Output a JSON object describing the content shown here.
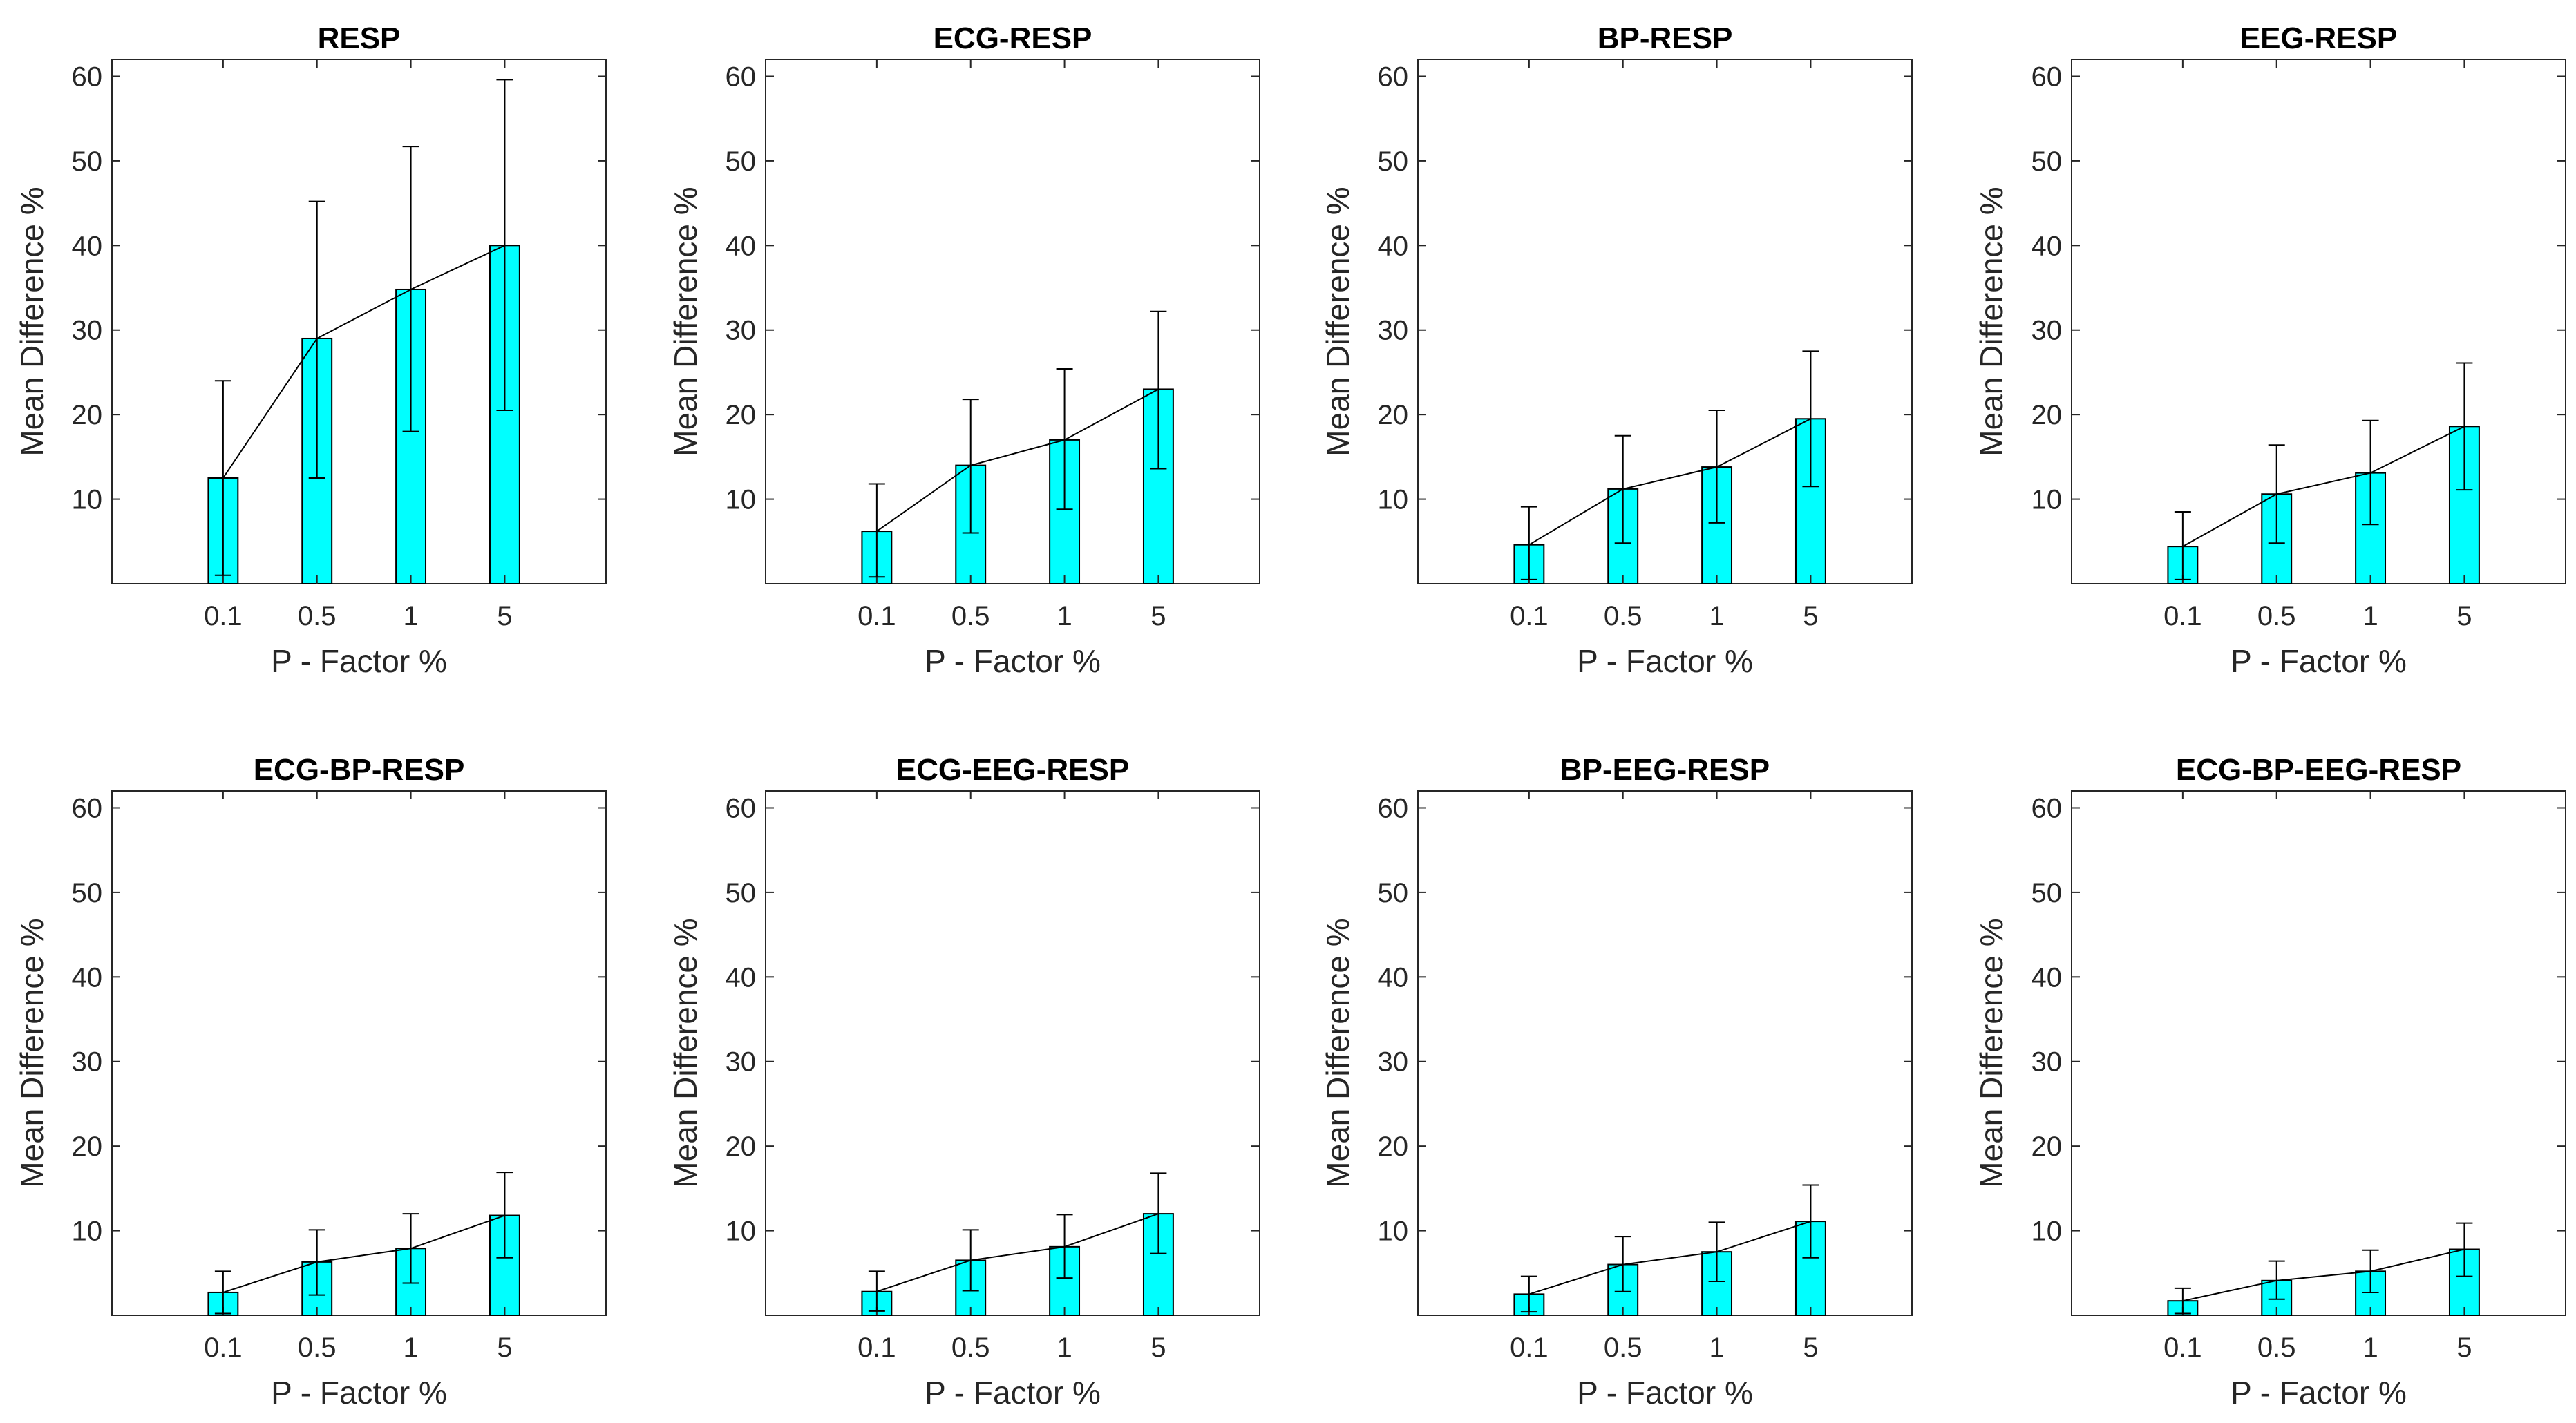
{
  "chart_data": [
    {
      "type": "bar",
      "title": "RESP",
      "xlabel": "P - Factor %",
      "ylabel": "Mean Difference %",
      "categories": [
        "0.1",
        "0.5",
        "1",
        "5"
      ],
      "values": [
        12.5,
        29,
        34.8,
        40
      ],
      "error_low": [
        1,
        12.5,
        18,
        20.5
      ],
      "error_high": [
        24,
        45.2,
        51.7,
        59.6
      ],
      "yticks": [
        10,
        20,
        30,
        40,
        50,
        60
      ],
      "ylim": [
        0,
        62
      ],
      "bar_color": "#00ffff"
    },
    {
      "type": "bar",
      "title": "ECG-RESP",
      "xlabel": "P - Factor %",
      "ylabel": "Mean Difference %",
      "categories": [
        "0.1",
        "0.5",
        "1",
        "5"
      ],
      "values": [
        6.2,
        14,
        17,
        23
      ],
      "error_low": [
        0.8,
        6,
        8.8,
        13.6
      ],
      "error_high": [
        11.8,
        21.8,
        25.4,
        32.2
      ],
      "yticks": [
        10,
        20,
        30,
        40,
        50,
        60
      ],
      "ylim": [
        0,
        62
      ],
      "bar_color": "#00ffff"
    },
    {
      "type": "bar",
      "title": "BP-RESP",
      "xlabel": "P - Factor %",
      "ylabel": "Mean Difference %",
      "categories": [
        "0.1",
        "0.5",
        "1",
        "5"
      ],
      "values": [
        4.6,
        11.2,
        13.8,
        19.5
      ],
      "error_low": [
        0.5,
        4.8,
        7.2,
        11.5
      ],
      "error_high": [
        9.1,
        17.5,
        20.5,
        27.5
      ],
      "yticks": [
        10,
        20,
        30,
        40,
        50,
        60
      ],
      "ylim": [
        0,
        62
      ],
      "bar_color": "#00ffff"
    },
    {
      "type": "bar",
      "title": "EEG-RESP",
      "xlabel": "P - Factor %",
      "ylabel": "Mean Difference %",
      "categories": [
        "0.1",
        "0.5",
        "1",
        "5"
      ],
      "values": [
        4.4,
        10.6,
        13.1,
        18.6
      ],
      "error_low": [
        0.5,
        4.8,
        7,
        11.1
      ],
      "error_high": [
        8.5,
        16.4,
        19.3,
        26.1
      ],
      "yticks": [
        10,
        20,
        30,
        40,
        50,
        60
      ],
      "ylim": [
        0,
        62
      ],
      "bar_color": "#00ffff"
    },
    {
      "type": "bar",
      "title": "ECG-BP-RESP",
      "xlabel": "P - Factor %",
      "ylabel": "Mean Difference %",
      "categories": [
        "0.1",
        "0.5",
        "1",
        "5"
      ],
      "values": [
        2.7,
        6.3,
        7.9,
        11.8
      ],
      "error_low": [
        0.2,
        2.4,
        3.8,
        6.8
      ],
      "error_high": [
        5.2,
        10.1,
        12,
        16.9
      ],
      "yticks": [
        10,
        20,
        30,
        40,
        50,
        60
      ],
      "ylim": [
        0,
        62
      ],
      "bar_color": "#00ffff"
    },
    {
      "type": "bar",
      "title": "ECG-EEG-RESP",
      "xlabel": "P - Factor %",
      "ylabel": "Mean Difference %",
      "categories": [
        "0.1",
        "0.5",
        "1",
        "5"
      ],
      "values": [
        2.8,
        6.5,
        8.1,
        12
      ],
      "error_low": [
        0.5,
        2.9,
        4.4,
        7.3
      ],
      "error_high": [
        5.2,
        10.1,
        11.9,
        16.8
      ],
      "yticks": [
        10,
        20,
        30,
        40,
        50,
        60
      ],
      "ylim": [
        0,
        62
      ],
      "bar_color": "#00ffff"
    },
    {
      "type": "bar",
      "title": "BP-EEG-RESP",
      "xlabel": "P - Factor %",
      "ylabel": "Mean Difference %",
      "categories": [
        "0.1",
        "0.5",
        "1",
        "5"
      ],
      "values": [
        2.5,
        6,
        7.5,
        11.1
      ],
      "error_low": [
        0.4,
        2.8,
        4,
        6.8
      ],
      "error_high": [
        4.6,
        9.3,
        11,
        15.4
      ],
      "yticks": [
        10,
        20,
        30,
        40,
        50,
        60
      ],
      "ylim": [
        0,
        62
      ],
      "bar_color": "#00ffff"
    },
    {
      "type": "bar",
      "title": "ECG-BP-EEG-RESP",
      "xlabel": "P - Factor %",
      "ylabel": "Mean Difference %",
      "categories": [
        "0.1",
        "0.5",
        "1",
        "5"
      ],
      "values": [
        1.7,
        4.1,
        5.2,
        7.8
      ],
      "error_low": [
        0.2,
        1.9,
        2.7,
        4.6
      ],
      "error_high": [
        3.2,
        6.4,
        7.7,
        10.9
      ],
      "yticks": [
        10,
        20,
        30,
        40,
        50,
        60
      ],
      "ylim": [
        0,
        62
      ],
      "bar_color": "#00ffff"
    }
  ]
}
